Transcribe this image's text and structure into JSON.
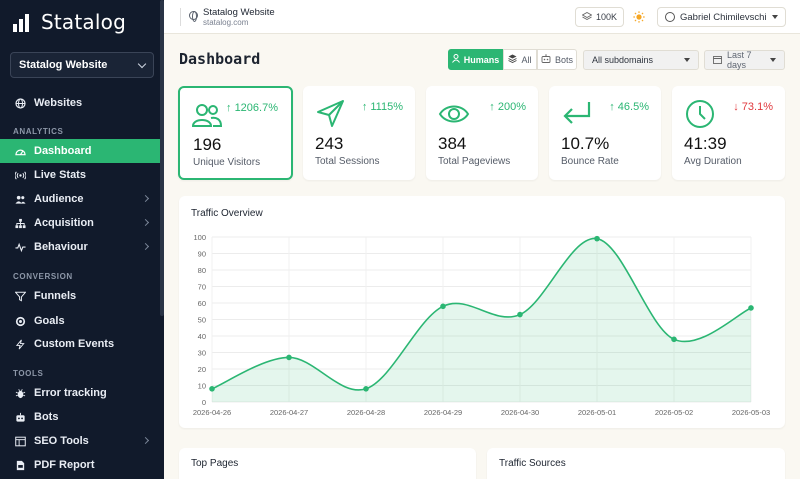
{
  "app": {
    "name": "Statalog"
  },
  "sidebar": {
    "site_select": "Statalog Website",
    "websites": "Websites",
    "sections": {
      "analytics": "ANALYTICS",
      "conversion": "CONVERSION",
      "tools": "TOOLS"
    },
    "analytics_items": [
      {
        "label": "Dashboard",
        "icon": "gauge-icon",
        "active": true
      },
      {
        "label": "Live Stats",
        "icon": "broadcast-icon"
      },
      {
        "label": "Audience",
        "icon": "users-icon",
        "expandable": true
      },
      {
        "label": "Acquisition",
        "icon": "sitemap-icon",
        "expandable": true
      },
      {
        "label": "Behaviour",
        "icon": "pulse-icon",
        "expandable": true
      }
    ],
    "conversion_items": [
      {
        "label": "Funnels",
        "icon": "funnel-icon"
      },
      {
        "label": "Goals",
        "icon": "target-icon"
      },
      {
        "label": "Custom Events",
        "icon": "bolt-icon"
      }
    ],
    "tools_items": [
      {
        "label": "Error tracking",
        "icon": "bug-icon"
      },
      {
        "label": "Bots",
        "icon": "robot-icon"
      },
      {
        "label": "SEO Tools",
        "icon": "seo-icon",
        "expandable": true
      },
      {
        "label": "PDF Report",
        "icon": "pdf-icon"
      }
    ]
  },
  "topbar": {
    "site_name": "Statalog Website",
    "site_domain": "statalog.com",
    "plan": "100K",
    "user": "Gabriel Chimilevschi"
  },
  "header": {
    "title": "Dashboard",
    "segments": {
      "humans": "Humans",
      "all": "All",
      "bots": "Bots"
    },
    "subdomain_select": "All subdomains",
    "date_select": "Last 7 days"
  },
  "stats": [
    {
      "value": "196",
      "label": "Unique Visitors",
      "change": "1206.7%",
      "direction": "up",
      "icon": "users-icon"
    },
    {
      "value": "243",
      "label": "Total Sessions",
      "change": "1115%",
      "direction": "up",
      "icon": "send-icon"
    },
    {
      "value": "384",
      "label": "Total Pageviews",
      "change": "200%",
      "direction": "up",
      "icon": "eye-icon"
    },
    {
      "value": "10.7%",
      "label": "Bounce Rate",
      "change": "46.5%",
      "direction": "up",
      "icon": "return-arrow-icon"
    },
    {
      "value": "41:39",
      "label": "Avg Duration",
      "change": "73.1%",
      "direction": "down",
      "icon": "clock-icon"
    }
  ],
  "colors": {
    "accent": "#2bb673",
    "sidebar_bg": "#111a2b",
    "down": "#e0393e"
  },
  "chart_data": {
    "type": "area",
    "title": "Traffic Overview",
    "x": [
      "2026-04-26",
      "2026-04-27",
      "2026-04-28",
      "2026-04-29",
      "2026-04-30",
      "2026-05-01",
      "2026-05-02",
      "2026-05-03"
    ],
    "series": [
      {
        "values": [
          8,
          27,
          8,
          58,
          53,
          99,
          38,
          57
        ]
      }
    ],
    "ylim": [
      0,
      100
    ],
    "yticks": [
      0,
      10,
      20,
      30,
      40,
      50,
      60,
      70,
      80,
      90,
      100
    ],
    "grid": true
  },
  "bottom_panels": {
    "top_pages": "Top Pages",
    "traffic_sources": "Traffic Sources"
  }
}
